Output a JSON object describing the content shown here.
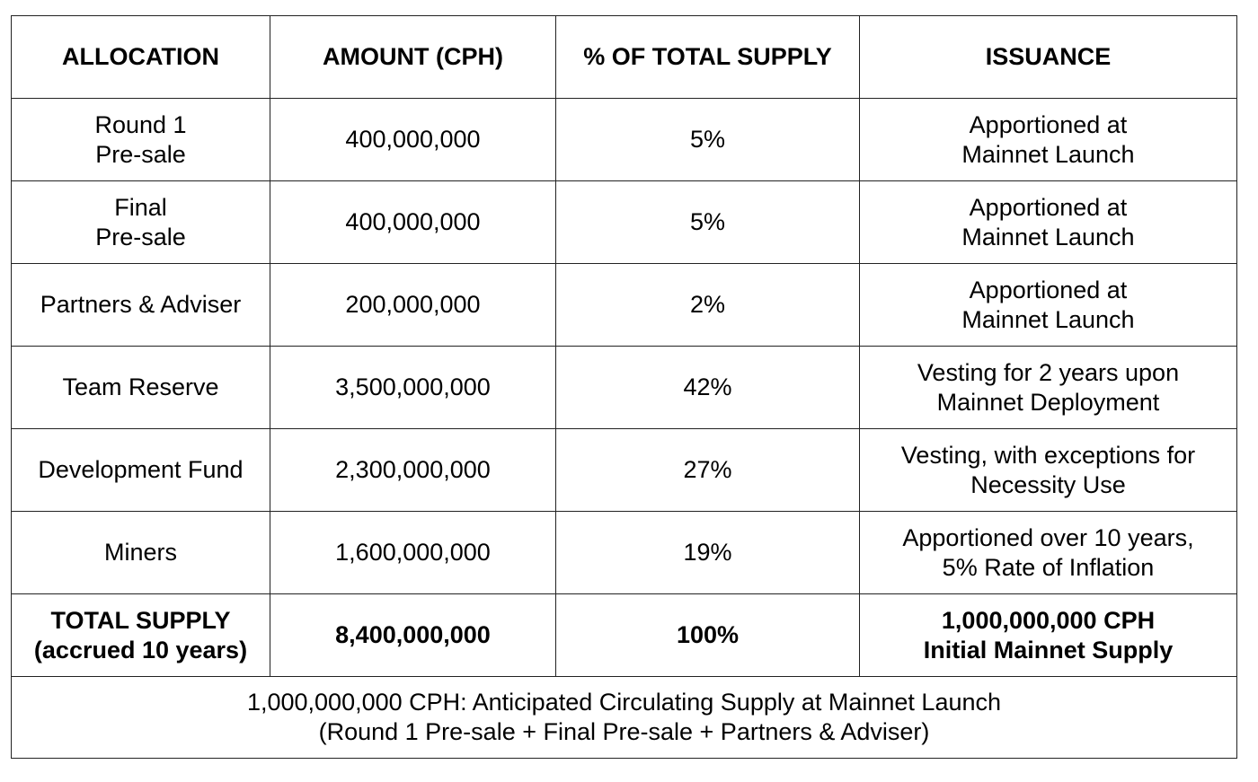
{
  "table": {
    "headers": [
      "ALLOCATION",
      "AMOUNT (CPH)",
      "% OF TOTAL SUPPLY",
      "ISSUANCE"
    ],
    "rows": [
      {
        "allocation": [
          "Round 1",
          "Pre-sale"
        ],
        "amount": "400,000,000",
        "percent": "5%",
        "issuance": [
          "Apportioned at",
          "Mainnet Launch"
        ]
      },
      {
        "allocation": [
          "Final",
          "Pre-sale"
        ],
        "amount": "400,000,000",
        "percent": "5%",
        "issuance": [
          "Apportioned at",
          "Mainnet Launch"
        ]
      },
      {
        "allocation": [
          "Partners & Adviser"
        ],
        "amount": "200,000,000",
        "percent": "2%",
        "issuance": [
          "Apportioned at",
          "Mainnet Launch"
        ]
      },
      {
        "allocation": [
          "Team Reserve"
        ],
        "amount": "3,500,000,000",
        "percent": "42%",
        "issuance": [
          "Vesting for 2 years upon",
          "Mainnet Deployment"
        ]
      },
      {
        "allocation": [
          "Development Fund"
        ],
        "amount": "2,300,000,000",
        "percent": "27%",
        "issuance": [
          "Vesting, with exceptions for",
          "Necessity Use"
        ]
      },
      {
        "allocation": [
          "Miners"
        ],
        "amount": "1,600,000,000",
        "percent": "19%",
        "issuance": [
          "Apportioned over 10 years,",
          "5% Rate of Inflation"
        ]
      }
    ],
    "total": {
      "allocation": [
        "TOTAL SUPPLY",
        "(accrued 10 years)"
      ],
      "amount": "8,400,000,000",
      "percent": "100%",
      "issuance": [
        "1,000,000,000 CPH",
        "Initial Mainnet Supply"
      ]
    },
    "footer": [
      "1,000,000,000 CPH: Anticipated Circulating Supply at Mainnet Launch",
      "(Round 1 Pre-sale + Final Pre-sale + Partners & Adviser)"
    ]
  },
  "colors": {
    "border": "#222222",
    "text": "#000000",
    "background": "#ffffff"
  }
}
